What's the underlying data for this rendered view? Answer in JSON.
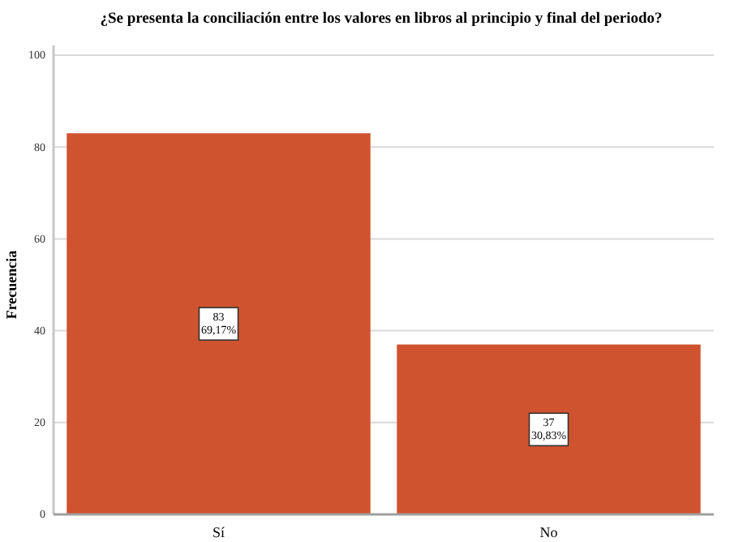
{
  "chart_data": {
    "type": "bar",
    "title": "¿Se presenta la conciliación entre los valores en libros al principio y final del periodo?",
    "ylabel": "Frecuencia",
    "categories": [
      "Sí",
      "No"
    ],
    "values": [
      83,
      37
    ],
    "color": "#d0532f",
    "value_labels": [
      "83\n69,17%",
      "37\n30,83%"
    ],
    "ylim": [
      0,
      100
    ],
    "yticks": [
      0,
      20,
      40,
      60,
      80,
      100
    ],
    "grid": "y"
  }
}
